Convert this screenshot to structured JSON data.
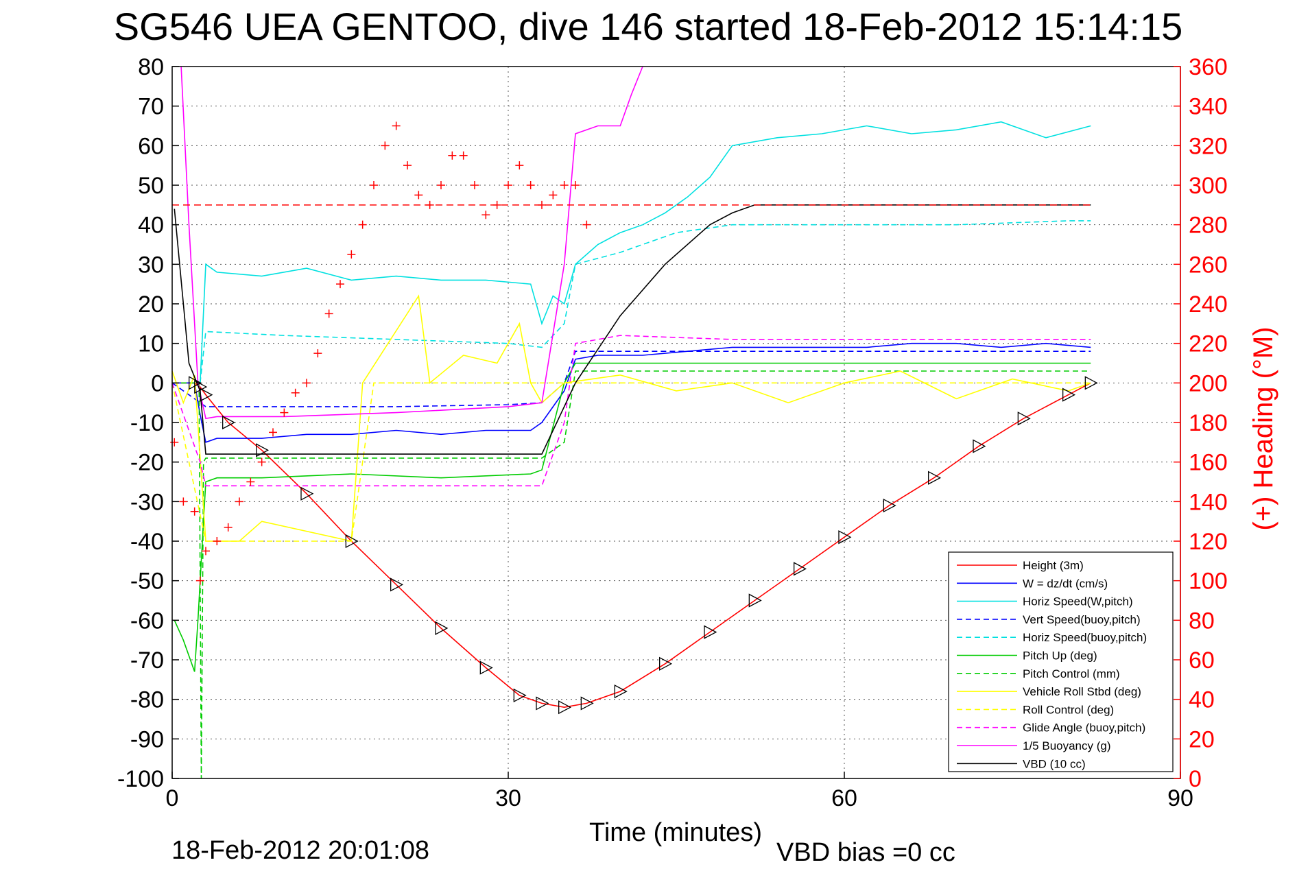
{
  "chart_data": {
    "type": "line",
    "title": "SG546 UEA GENTOO, dive 146 started 18-Feb-2012 15:14:15",
    "xlabel": "Time (minutes)",
    "ylabel": "",
    "y2label": "(+) Heading (°M)",
    "footer_left": "18-Feb-2012 20:01:08",
    "footer_right": "VBD bias =0 cc",
    "xlim": [
      0,
      90
    ],
    "ylim": [
      -100,
      80
    ],
    "y2lim": [
      0,
      360
    ],
    "xticks": [
      "0",
      "30",
      "60",
      "90"
    ],
    "yticks": [
      "80",
      "70",
      "60",
      "50",
      "40",
      "30",
      "20",
      "10",
      "0",
      "-10",
      "-20",
      "-30",
      "-40",
      "-50",
      "-60",
      "-70",
      "-80",
      "-90",
      "-100"
    ],
    "y2ticks": [
      "360",
      "340",
      "320",
      "300",
      "280",
      "260",
      "240",
      "220",
      "200",
      "180",
      "160",
      "140",
      "120",
      "100",
      "80",
      "60",
      "40",
      "20",
      "0"
    ],
    "grid": true,
    "legend_position": "bottom-right",
    "heading_reference": 290,
    "colors": {
      "height": "#ff0000",
      "w": "#0000ff",
      "horiz_speed": "#00e0e0",
      "vert_speed_buoy": "#0000ff",
      "horiz_speed_buoy": "#00e0e0",
      "pitch_up": "#00cc00",
      "pitch_control": "#00cc00",
      "vehicle_roll": "#ffff00",
      "roll_control": "#ffff00",
      "glide_angle": "#ff00ff",
      "buoyancy": "#ff00ff",
      "vbd": "#000000",
      "heading": "#ff0000"
    },
    "legend": [
      {
        "key": "height",
        "label": "Height (3m)",
        "dash": false
      },
      {
        "key": "w",
        "label": "W = dz/dt (cm/s)",
        "dash": false
      },
      {
        "key": "horiz_speed",
        "label": "Horiz Speed(W,pitch)",
        "dash": false
      },
      {
        "key": "vert_speed_buoy",
        "label": "Vert Speed(buoy,pitch)",
        "dash": true
      },
      {
        "key": "horiz_speed_buoy",
        "label": "Horiz Speed(buoy,pitch)",
        "dash": true
      },
      {
        "key": "pitch_up",
        "label": "Pitch Up (deg)",
        "dash": false
      },
      {
        "key": "pitch_control",
        "label": "Pitch Control (mm)",
        "dash": true
      },
      {
        "key": "vehicle_roll",
        "label": "Vehicle Roll Stbd (deg)",
        "dash": false
      },
      {
        "key": "roll_control",
        "label": "Roll Control (deg)",
        "dash": true
      },
      {
        "key": "glide_angle",
        "label": "Glide Angle (buoy,pitch)",
        "dash": true
      },
      {
        "key": "buoyancy",
        "label": "1/5 Buoyancy (g)",
        "dash": false
      },
      {
        "key": "vbd",
        "label": "VBD (10 cc)",
        "dash": false
      }
    ],
    "series": [
      {
        "key": "height",
        "x": [
          0,
          2,
          2.5,
          3,
          5,
          8,
          12,
          16,
          20,
          24,
          28,
          31,
          33,
          35,
          37,
          40,
          44,
          48,
          52,
          56,
          60,
          64,
          68,
          72,
          76,
          80,
          82
        ],
        "y": [
          0,
          0,
          -1,
          -3,
          -10,
          -17,
          -28,
          -40,
          -51,
          -62,
          -72,
          -79,
          -81,
          -82,
          -81,
          -78,
          -71,
          -63,
          -55,
          -47,
          -39,
          -31,
          -24,
          -16,
          -9,
          -3,
          0
        ]
      },
      {
        "key": "w",
        "x": [
          0,
          2,
          2.5,
          3,
          4,
          8,
          12,
          16,
          20,
          24,
          28,
          32,
          33,
          35,
          36,
          38,
          42,
          46,
          50,
          54,
          58,
          62,
          66,
          70,
          74,
          78,
          82
        ],
        "y": [
          0,
          0,
          -8,
          -15,
          -14,
          -14,
          -13,
          -13,
          -12,
          -13,
          -12,
          -12,
          -10,
          -2,
          6,
          7,
          7,
          8,
          9,
          9,
          9,
          9,
          10,
          10,
          9,
          10,
          9
        ]
      },
      {
        "key": "horiz_speed",
        "x": [
          2.5,
          3,
          4,
          8,
          12,
          16,
          20,
          24,
          28,
          32,
          33,
          34,
          35,
          36,
          38,
          40,
          42,
          44,
          46,
          48,
          50,
          54,
          58,
          62,
          66,
          70,
          74,
          78,
          82
        ],
        "y": [
          0,
          30,
          28,
          27,
          29,
          26,
          27,
          26,
          26,
          25,
          15,
          22,
          20,
          30,
          35,
          38,
          40,
          43,
          47,
          52,
          60,
          62,
          63,
          65,
          63,
          64,
          66,
          62,
          65
        ]
      },
      {
        "key": "vert_speed_buoy",
        "x": [
          0,
          2.5,
          3,
          10,
          20,
          30,
          33,
          35,
          36,
          40,
          50,
          60,
          70,
          80,
          82
        ],
        "y": [
          0,
          -5,
          -6,
          -6,
          -6,
          -5.5,
          -5,
          0,
          8,
          8,
          8,
          8,
          8,
          8,
          8
        ]
      },
      {
        "key": "horiz_speed_buoy",
        "x": [
          2.5,
          3,
          10,
          20,
          30,
          33,
          35,
          36,
          40,
          45,
          50,
          60,
          70,
          80,
          82
        ],
        "y": [
          0,
          13,
          12,
          11,
          10,
          9,
          15,
          30,
          33,
          38,
          40,
          40,
          40,
          41,
          41
        ]
      },
      {
        "key": "pitch_up",
        "x": [
          0.2,
          1,
          2,
          2.3,
          3,
          4,
          8,
          16,
          24,
          32,
          33,
          35,
          36,
          40,
          50,
          60,
          70,
          80,
          82
        ],
        "y": [
          -60,
          -65,
          -73,
          -60,
          -25,
          -24,
          -24,
          -23,
          -24,
          -23,
          -22,
          0,
          5,
          5,
          5,
          5,
          5,
          5,
          5
        ]
      },
      {
        "key": "pitch_control",
        "x": [
          0,
          2.4,
          2.6,
          2.8,
          3,
          10,
          20,
          30,
          33,
          35,
          36,
          40,
          50,
          60,
          70,
          80,
          82
        ],
        "y": [
          0,
          0,
          -100,
          -20,
          -19,
          -19,
          -19,
          -19,
          -19,
          -15,
          3,
          3,
          3,
          3,
          3,
          3,
          3
        ]
      },
      {
        "key": "vehicle_roll",
        "x": [
          0,
          1,
          2,
          3,
          6,
          8,
          16,
          17,
          22,
          23,
          26,
          29,
          31,
          32,
          33,
          35,
          40,
          45,
          50,
          55,
          60,
          65,
          70,
          75,
          80,
          82
        ],
        "y": [
          3,
          -5,
          2,
          -40,
          -40,
          -35,
          -40,
          0,
          22,
          0,
          7,
          5,
          15,
          0,
          -5,
          0,
          2,
          -2,
          0,
          -5,
          0,
          3,
          -4,
          1,
          -2,
          0
        ]
      },
      {
        "key": "roll_control",
        "x": [
          0,
          3,
          6,
          10,
          16,
          18,
          22,
          26,
          30,
          33,
          36,
          40,
          45,
          50,
          55,
          60,
          65,
          70,
          75,
          80,
          82
        ],
        "y": [
          0,
          -40,
          -40,
          -40,
          -40,
          0,
          0,
          0,
          0,
          0,
          0,
          0,
          0,
          0,
          0,
          0,
          0,
          0,
          0,
          0,
          0
        ]
      },
      {
        "key": "glide_angle",
        "x": [
          0,
          2.5,
          3,
          10,
          20,
          30,
          33,
          35,
          36,
          40,
          50,
          60,
          70,
          80,
          82
        ],
        "y": [
          0,
          -20,
          -26,
          -26,
          -26,
          -26,
          -26,
          -10,
          10,
          12,
          11,
          11,
          11,
          11,
          11
        ]
      },
      {
        "key": "buoyancy",
        "x": [
          0.8,
          1.5,
          2.3,
          3,
          4,
          10,
          20,
          30,
          33,
          35,
          36,
          38,
          40,
          41,
          42
        ],
        "y": [
          80,
          40,
          0,
          -9,
          -8.5,
          -8.5,
          -7.5,
          -6,
          -5,
          30,
          63,
          65,
          65,
          73,
          80
        ]
      },
      {
        "key": "vbd",
        "x": [
          0.2,
          1.5,
          2.5,
          3,
          10,
          20,
          30,
          33,
          36,
          40,
          44,
          48,
          50,
          52,
          60,
          70,
          80,
          82
        ],
        "y": [
          44,
          5,
          -2,
          -18,
          -18,
          -18,
          -18,
          -18,
          0,
          17,
          30,
          40,
          43,
          45,
          45,
          45,
          45,
          45
        ]
      }
    ],
    "heading": {
      "x": [
        0.2,
        1,
        2,
        2.5,
        3,
        4,
        5,
        6,
        7,
        8,
        9,
        10,
        11,
        12,
        13,
        14,
        15,
        16,
        17,
        18,
        19,
        20,
        21,
        22,
        23,
        24,
        25,
        26,
        27,
        28,
        29,
        30,
        31,
        32,
        33,
        34,
        35,
        36,
        37
      ],
      "y": [
        170,
        140,
        135,
        100,
        115,
        120,
        127,
        140,
        150,
        160,
        175,
        185,
        195,
        200,
        215,
        235,
        250,
        265,
        280,
        300,
        320,
        330,
        310,
        295,
        290,
        300,
        315,
        315,
        300,
        285,
        290,
        300,
        310,
        300,
        290,
        295,
        300,
        300,
        280
      ]
    }
  }
}
